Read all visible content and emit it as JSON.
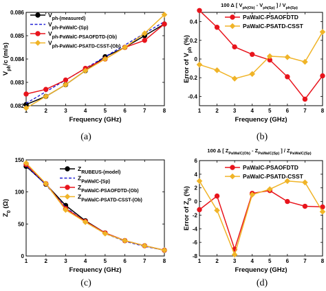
{
  "colors": {
    "black": "#000000",
    "blue": "#1f1fd6",
    "red": "#e8141c",
    "orange": "#f0b428"
  },
  "chart_data": [
    {
      "type": "line",
      "panel_label": "(a)",
      "title": "",
      "xlabel": "Frequency (GHz)",
      "ylabel": "V_ph/c (m/s)",
      "xlim": [
        1,
        8
      ],
      "ylim": [
        0.082,
        0.086
      ],
      "xticks": [
        "1",
        "2",
        "3",
        "4",
        "5",
        "6",
        "7",
        "8"
      ],
      "yticks": [
        "0.082",
        "0.083",
        "0.084",
        "0.085",
        "0.086"
      ],
      "grid": false,
      "legend_position": "top-left",
      "x": [
        1,
        2,
        3,
        4,
        5,
        6,
        7,
        8
      ],
      "series": [
        {
          "name": "V_ph-(measured)",
          "legend_main": "V",
          "legend_sub": "ph-(measured)",
          "color": "black",
          "dash": "solid",
          "marker": "circle",
          "values": [
            0.08205,
            0.0824,
            0.0829,
            0.0835,
            0.0841,
            0.0845,
            0.085,
            0.0855
          ]
        },
        {
          "name": "V_ph-PaWalC-(Sp)",
          "legend_main": "V",
          "legend_sub": "ph-PaWalC-(Sp)",
          "color": "blue",
          "dash": "dashed",
          "marker": "none",
          "values": [
            0.0821,
            0.0826,
            0.0831,
            0.0836,
            0.0841,
            0.0846,
            0.0851,
            0.0856
          ]
        },
        {
          "name": "V_ph-PaWalC-PSAOFDTD-(Ob)",
          "legend_main": "V",
          "legend_sub": "ph-PaWalC-PSAOFDTD-(Ob)",
          "color": "red",
          "dash": "solid",
          "marker": "circle",
          "values": [
            0.0825,
            0.0827,
            0.0831,
            0.0836,
            0.084,
            0.0845,
            0.0848,
            0.0855
          ]
        },
        {
          "name": "V_ph-PaWalC-PSATD-CSST-(Ob)",
          "legend_main": "V",
          "legend_sub": "ph-PaWalC-PSATD-CSST-(Ob)",
          "color": "orange",
          "dash": "solid",
          "marker": "diamond",
          "values": [
            0.0819,
            0.0824,
            0.0829,
            0.0835,
            0.084,
            0.0845,
            0.0851,
            0.0859
          ]
        }
      ]
    },
    {
      "type": "line",
      "panel_label": "(b)",
      "title": "100 Δ [ V_ph(Ob) - V_ph(Sp) ] / V_ph(Sp)",
      "title_parts": {
        "pre": "100 Δ [ V",
        "s1": "ph(Ob)",
        "mid": " - V",
        "s2": "ph(Sp)",
        "post": " ] / V",
        "s3": "ph(Sp)"
      },
      "xlabel": "Frequency (GHz)",
      "ylabel": "Error of V_ph (%)",
      "xlim": [
        1,
        8
      ],
      "ylim": [
        -0.5,
        0.5
      ],
      "xticks": [
        "1",
        "2",
        "3",
        "4",
        "5",
        "6",
        "7",
        "8"
      ],
      "yticks": [
        "-0.4",
        "-0.2",
        "0",
        "0.2",
        "0.4"
      ],
      "grid": false,
      "legend_position": "top-right",
      "x": [
        1,
        2,
        3,
        4,
        5,
        6,
        7,
        8
      ],
      "series": [
        {
          "name": "PaWalC-PSAOFDTD",
          "color": "red",
          "dash": "solid",
          "marker": "circle",
          "values": [
            0.52,
            0.34,
            0.13,
            0.05,
            -0.01,
            -0.19,
            -0.43,
            -0.18
          ]
        },
        {
          "name": "PaWalC-PSATD-CSST",
          "color": "orange",
          "dash": "solid",
          "marker": "diamond",
          "values": [
            -0.06,
            -0.12,
            -0.21,
            -0.16,
            0.03,
            0.02,
            -0.03,
            0.29
          ]
        }
      ]
    },
    {
      "type": "line",
      "panel_label": "(c)",
      "title": "",
      "xlabel": "Frequency (GHz)",
      "ylabel": "Z_0 (Ω)",
      "xlim": [
        1,
        8
      ],
      "ylim": [
        0,
        150
      ],
      "xticks": [
        "1",
        "2",
        "3",
        "4",
        "5",
        "6",
        "7",
        "8"
      ],
      "yticks": [
        "0",
        "50",
        "100",
        "150"
      ],
      "grid": false,
      "legend_position": "top-right",
      "x": [
        1,
        2,
        3,
        4,
        5,
        6,
        7,
        8
      ],
      "series": [
        {
          "name": "Z_RUBEUS-(model)",
          "legend_main": "Z",
          "legend_sub": "RUBEUS-(model)",
          "color": "black",
          "dash": "solid",
          "marker": "circle",
          "values": [
            140,
            112,
            79,
            55,
            36,
            24,
            16,
            9
          ]
        },
        {
          "name": "Z_PaWalC-(Sp)",
          "legend_main": "Z",
          "legend_sub": "PaWalC-(Sp)",
          "color": "blue",
          "dash": "dashed",
          "marker": "none",
          "values": [
            141,
            111,
            76,
            53,
            35,
            23,
            15,
            9
          ]
        },
        {
          "name": "Z_PaWalC-PSAOFDTD-(Ob)",
          "legend_main": "Z",
          "legend_sub": "PaWalC-PSAOFDTD-(Ob)",
          "color": "red",
          "dash": "solid",
          "marker": "circle",
          "values": [
            143,
            113,
            74,
            54,
            36,
            24,
            16,
            9
          ]
        },
        {
          "name": "Z_PaWalC-PSATD-CSST-(Ob)",
          "legend_main": "Z",
          "legend_sub": "PaWalC-PSATD-CSST-(Ob)",
          "color": "orange",
          "dash": "solid",
          "marker": "diamond",
          "values": [
            145,
            113,
            72,
            53,
            35,
            24,
            16,
            9
          ]
        }
      ]
    },
    {
      "type": "line",
      "panel_label": "(d)",
      "title": "100 Δ [ Z_PaWalC(Ob) - Z_PaWalC(Sp) ] / Z_PaWalC(Sp)",
      "title_parts": {
        "pre": "100 Δ [ Z",
        "s1": "PaWalC(Ob)",
        "mid": " - Z",
        "s2": "PaWalC(Sp)",
        "post": " ] / Z",
        "s3": "PaWalC(Sp)"
      },
      "xlabel": "Frequency (GHz)",
      "ylabel": "Error of Z_0 (%)",
      "xlim": [
        1,
        8
      ],
      "ylim": [
        -8,
        6
      ],
      "xticks": [
        "1",
        "2",
        "3",
        "4",
        "5",
        "6",
        "7",
        "8"
      ],
      "yticks": [
        "-8",
        "-6",
        "-4",
        "-2",
        "0",
        "2",
        "4",
        "6"
      ],
      "grid": false,
      "legend_position": "top-right",
      "x": [
        1,
        2,
        3,
        4,
        5,
        6,
        7,
        8
      ],
      "series": [
        {
          "name": "PaWalC-PSAOFDTD",
          "color": "red",
          "dash": "solid",
          "marker": "circle",
          "values": [
            -1.2,
            0.8,
            -7.0,
            1.2,
            1.6,
            0.0,
            -0.7,
            -0.8
          ]
        },
        {
          "name": "PaWalC-PSATD-CSST",
          "color": "orange",
          "dash": "solid",
          "marker": "diamond",
          "values": [
            3.0,
            -1.3,
            -7.8,
            1.0,
            1.8,
            3.0,
            2.8,
            -1.5
          ]
        }
      ]
    }
  ]
}
